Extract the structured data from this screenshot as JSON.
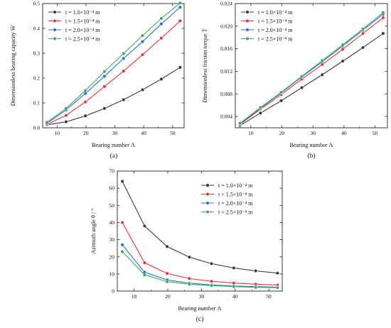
{
  "figure": {
    "panel_labels": [
      "(a)",
      "(b)",
      "(c)"
    ]
  },
  "chart_data": [
    {
      "type": "line",
      "panel": "(a)",
      "xlabel": "Bearing number Λ",
      "ylabel": "Dimensionless bearing capacity W̄",
      "xlim": [
        5,
        54
      ],
      "ylim": [
        0,
        0.5
      ],
      "x_ticks": [
        "10",
        "20",
        "30",
        "40",
        "50"
      ],
      "y_ticks": [
        "0.0",
        "0.1",
        "0.2",
        "0.3",
        "0.4",
        "0.5"
      ],
      "grid": false,
      "legend_position": "top-left",
      "x": [
        6.5,
        13.1,
        19.8,
        26.4,
        33.0,
        39.6,
        46.1,
        52.6
      ],
      "series": [
        {
          "name": "t = 1.0×10⁻⁴ m",
          "color": "#3a3a3a",
          "values": [
            0.012,
            0.024,
            0.048,
            0.078,
            0.113,
            0.153,
            0.196,
            0.243
          ]
        },
        {
          "name": "t = 1.5×10⁻⁴ m",
          "color": "#e8313a",
          "values": [
            0.014,
            0.05,
            0.104,
            0.166,
            0.228,
            0.294,
            0.361,
            0.43
          ]
        },
        {
          "name": "t = 2.0×10⁻⁴ m",
          "color": "#2a6fd6",
          "values": [
            0.018,
            0.072,
            0.138,
            0.207,
            0.279,
            0.347,
            0.418,
            0.485
          ]
        },
        {
          "name": "t = 2.5×10⁻⁴ m",
          "color": "#3aaa5a",
          "values": [
            0.022,
            0.078,
            0.15,
            0.226,
            0.299,
            0.371,
            0.44,
            0.502
          ]
        }
      ]
    },
    {
      "type": "line",
      "panel": "(b)",
      "xlabel": "Bearing number Λ",
      "ylabel": "Dimensionless friction torque T̄",
      "xlim": [
        5,
        54
      ],
      "ylim": [
        0.002,
        0.024
      ],
      "x_ticks": [
        "10",
        "20",
        "30",
        "40",
        "50"
      ],
      "y_ticks": [
        "0.004",
        "0.008",
        "0.012",
        "0.016",
        "0.020",
        "0.024"
      ],
      "grid": false,
      "legend_position": "top-left",
      "x": [
        6.5,
        13.1,
        19.8,
        26.4,
        33.0,
        39.6,
        46.1,
        52.6
      ],
      "series": [
        {
          "name": "t = 1.0×10⁻⁴ m",
          "color": "#3a3a3a",
          "values": [
            0.0024,
            0.0046,
            0.0068,
            0.0091,
            0.0114,
            0.0138,
            0.0162,
            0.0187
          ]
        },
        {
          "name": "t = 1.5×10⁻⁴ m",
          "color": "#e8313a",
          "values": [
            0.0026,
            0.0053,
            0.0079,
            0.0106,
            0.0132,
            0.0159,
            0.0187,
            0.0215
          ]
        },
        {
          "name": "t = 2.0×10⁻⁴ m",
          "color": "#2a6fd6",
          "values": [
            0.0027,
            0.0055,
            0.0082,
            0.011,
            0.0137,
            0.0165,
            0.0193,
            0.0221
          ]
        },
        {
          "name": "t = 2.5×10⁻⁴ m",
          "color": "#3aaa5a",
          "values": [
            0.0028,
            0.0056,
            0.0083,
            0.0111,
            0.0139,
            0.0167,
            0.0195,
            0.0224
          ]
        }
      ]
    },
    {
      "type": "line",
      "panel": "(c)",
      "xlabel": "Bearing number Λ",
      "ylabel": "Azimuth angle θ / °",
      "xlim": [
        5,
        54
      ],
      "ylim": [
        0,
        70
      ],
      "x_ticks": [
        "10",
        "20",
        "30",
        "40",
        "50"
      ],
      "y_ticks": [
        "0",
        "10",
        "20",
        "30",
        "40",
        "50",
        "60",
        "70"
      ],
      "grid": false,
      "legend_position": "top-right",
      "x": [
        6.5,
        13.1,
        19.8,
        26.4,
        33.0,
        39.6,
        46.1,
        52.6
      ],
      "series": [
        {
          "name": "t = 1.0×10⁻⁴ m",
          "color": "#3a3a3a",
          "values": [
            64.0,
            38.0,
            26.0,
            19.8,
            16.0,
            13.5,
            11.8,
            10.5
          ]
        },
        {
          "name": "t = 1.5×10⁻⁴ m",
          "color": "#e8313a",
          "values": [
            40.0,
            16.5,
            10.3,
            7.3,
            5.7,
            4.7,
            4.0,
            3.5
          ]
        },
        {
          "name": "t = 2.0×10⁻⁴ m",
          "color": "#2a6fd6",
          "values": [
            27.0,
            11.0,
            6.5,
            4.6,
            3.6,
            3.0,
            2.6,
            2.3
          ]
        },
        {
          "name": "t = 2.5×10⁻⁴ m",
          "color": "#3aaa5a",
          "values": [
            23.0,
            9.5,
            5.5,
            4.0,
            3.2,
            2.6,
            2.2,
            2.0
          ]
        }
      ]
    }
  ]
}
